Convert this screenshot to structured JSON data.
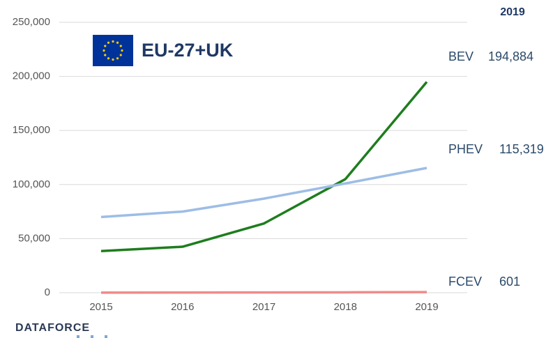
{
  "chart_data": {
    "type": "line",
    "title": "EU-27+UK",
    "annotation": "2019",
    "source": "DATAFORCE",
    "categories": [
      "2015",
      "2016",
      "2017",
      "2018",
      "2019"
    ],
    "series": [
      {
        "name": "BEV",
        "color": "#1e7d1e",
        "values": [
          38500,
          42500,
          64000,
          105000,
          194884
        ],
        "value_labels": [
          null,
          null,
          null,
          null,
          "194,884"
        ]
      },
      {
        "name": "PHEV",
        "color": "#9dbde6",
        "values": [
          70000,
          75000,
          87000,
          101000,
          115319
        ],
        "value_labels": [
          null,
          null,
          null,
          null,
          "115,319"
        ]
      },
      {
        "name": "FCEV",
        "color": "#f08a8a",
        "values": [
          100,
          200,
          250,
          350,
          601
        ],
        "value_labels": [
          null,
          null,
          null,
          null,
          "601"
        ]
      }
    ],
    "ylim": [
      0,
      250000
    ],
    "yticks": [
      0,
      {
        "value": 50000,
        "label": "50,000"
      },
      {
        "value": 100000,
        "label": "100,000"
      },
      {
        "value": 150000,
        "label": "150,000"
      },
      {
        "value": 200000,
        "label": "200,000"
      },
      {
        "value": 250000,
        "label": "250,000"
      }
    ],
    "grid": true
  }
}
